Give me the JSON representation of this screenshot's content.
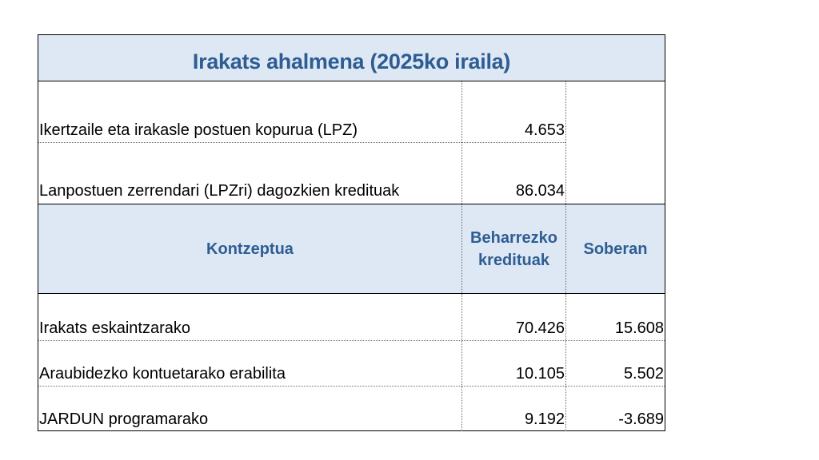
{
  "title": "Irakats ahalmena (2025ko iraila)",
  "summary_rows": [
    {
      "label": "Ikertzaile eta irakasle postuen kopurua (LPZ)",
      "value": "4.653"
    },
    {
      "label": "Lanpostuen zerrendari (LPZri) dagozkien kredituak",
      "value": "86.034"
    }
  ],
  "headers": {
    "concept": "Kontzeptua",
    "required_line1": "Beharrezko",
    "required_line2": "kredituak",
    "surplus": "Soberan"
  },
  "rows": [
    {
      "concept": "Irakats eskaintzarako",
      "required": "70.426",
      "surplus": "15.608"
    },
    {
      "concept": "Araubidezko kontuetarako erabilita",
      "required": "10.105",
      "surplus": "5.502"
    },
    {
      "concept": "JARDUN programarako",
      "required": "9.192",
      "surplus": "-3.689"
    }
  ]
}
